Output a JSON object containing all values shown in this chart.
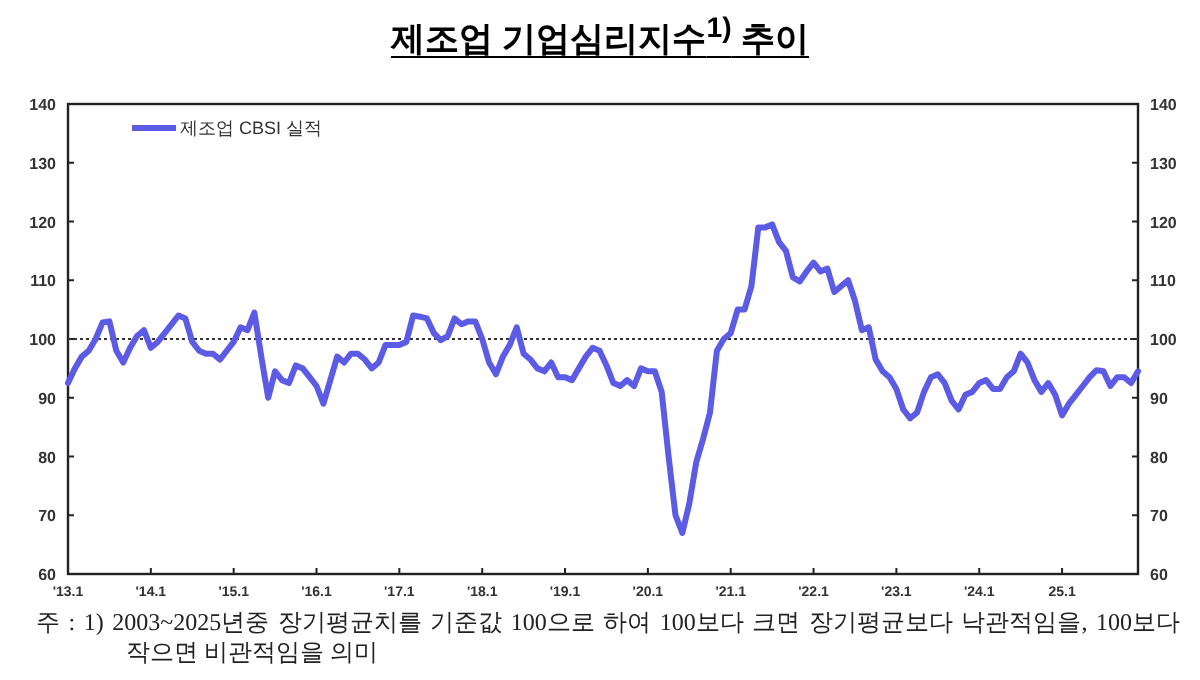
{
  "chart_data": {
    "type": "line",
    "title": "제조업 기업심리지수$^{1)}$ 추이",
    "x": [
      "2013-01",
      "2013-02",
      "2013-03",
      "2013-04",
      "2013-05",
      "2013-06",
      "2013-07",
      "2013-08",
      "2013-09",
      "2013-10",
      "2013-11",
      "2013-12",
      "2014-01",
      "2014-02",
      "2014-03",
      "2014-04",
      "2014-05",
      "2014-06",
      "2014-07",
      "2014-08",
      "2014-09",
      "2014-10",
      "2014-11",
      "2014-12",
      "2015-01",
      "2015-02",
      "2015-03",
      "2015-04",
      "2015-05",
      "2015-06",
      "2015-07",
      "2015-08",
      "2015-09",
      "2015-10",
      "2015-11",
      "2015-12",
      "2016-01",
      "2016-02",
      "2016-03",
      "2016-04",
      "2016-05",
      "2016-06",
      "2016-07",
      "2016-08",
      "2016-09",
      "2016-10",
      "2016-11",
      "2016-12",
      "2017-01",
      "2017-02",
      "2017-03",
      "2017-04",
      "2017-05",
      "2017-06",
      "2017-07",
      "2017-08",
      "2017-09",
      "2017-10",
      "2017-11",
      "2017-12",
      "2018-01",
      "2018-02",
      "2018-03",
      "2018-04",
      "2018-05",
      "2018-06",
      "2018-07",
      "2018-08",
      "2018-09",
      "2018-10",
      "2018-11",
      "2018-12",
      "2019-01",
      "2019-02",
      "2019-03",
      "2019-04",
      "2019-05",
      "2019-06",
      "2019-07",
      "2019-08",
      "2019-09",
      "2019-10",
      "2019-11",
      "2019-12",
      "2020-01",
      "2020-02",
      "2020-03",
      "2020-04",
      "2020-05",
      "2020-06",
      "2020-07",
      "2020-08",
      "2020-09",
      "2020-10",
      "2020-11",
      "2020-12",
      "2021-01",
      "2021-02",
      "2021-03",
      "2021-04",
      "2021-05",
      "2021-06",
      "2021-07",
      "2021-08",
      "2021-09",
      "2021-10",
      "2021-11",
      "2021-12",
      "2022-01",
      "2022-02",
      "2022-03",
      "2022-04",
      "2022-05",
      "2022-06",
      "2022-07",
      "2022-08",
      "2022-09",
      "2022-10",
      "2022-11",
      "2022-12",
      "2023-01",
      "2023-02",
      "2023-03",
      "2023-04",
      "2023-05",
      "2023-06",
      "2023-07",
      "2023-08",
      "2023-09",
      "2023-10",
      "2023-11",
      "2023-12",
      "2024-01",
      "2024-02",
      "2024-03",
      "2024-04",
      "2024-05",
      "2024-06",
      "2024-07",
      "2024-08",
      "2024-09",
      "2024-10",
      "2024-11",
      "2024-12",
      "2025-01",
      "2025-02",
      "2025-03",
      "2025-04",
      "2025-05",
      "2025-06",
      "2025-07",
      "2025-08",
      "2025-09",
      "2025-10",
      "2025-11",
      "2025-12"
    ],
    "series": [
      {
        "name": "제조업 CBSI 실적",
        "color": "#5b5be6",
        "values": [
          92.5,
          95,
          97,
          98,
          100,
          102.8,
          103,
          98,
          96,
          98.5,
          100.5,
          101.5,
          98.5,
          99.5,
          101,
          102.5,
          104,
          103.5,
          99.5,
          98,
          97.5,
          97.5,
          96.5,
          98,
          99.5,
          102,
          101.5,
          104.5,
          97,
          90,
          94.5,
          93,
          92.5,
          95.5,
          95,
          93.5,
          92,
          89,
          93,
          97,
          96,
          97.5,
          97.5,
          96.5,
          95,
          96,
          99,
          99,
          99,
          99.5,
          104,
          103.8,
          103.5,
          101,
          99.8,
          100.5,
          103.5,
          102.5,
          103,
          103,
          100,
          96,
          94,
          97,
          99,
          102,
          97.5,
          96.5,
          95,
          94.5,
          96,
          93.5,
          93.5,
          93,
          95,
          97,
          98.5,
          98,
          95.5,
          92.5,
          92,
          93,
          92,
          95,
          94.5,
          94.5,
          91,
          80,
          70,
          67,
          72,
          79,
          83,
          87.5,
          98,
          100,
          101,
          105,
          105,
          109,
          119,
          119,
          119.5,
          116.5,
          115,
          110.5,
          109.8,
          111.5,
          113,
          111.5,
          112,
          108,
          109,
          110,
          106.5,
          101.5,
          102,
          96.5,
          94.5,
          93.5,
          91.5,
          88,
          86.5,
          87.5,
          91,
          93.5,
          94,
          92.5,
          89.5,
          88,
          90.5,
          91,
          92.5,
          93,
          91.5,
          91.5,
          93.5,
          94.5,
          97.5,
          96,
          93,
          91,
          92.5,
          90.5,
          87,
          89,
          90.5,
          92,
          93.5,
          94.7,
          94.5,
          92,
          93.5,
          93.5,
          92.5,
          94.5
        ]
      }
    ],
    "xlim": [
      "2013-01",
      "2025-12"
    ],
    "xticks": [
      {
        "value": "2013-01",
        "label": "'13.1"
      },
      {
        "value": "2014-01",
        "label": "'14.1"
      },
      {
        "value": "2015-01",
        "label": "'15.1"
      },
      {
        "value": "2016-01",
        "label": "'16.1"
      },
      {
        "value": "2017-01",
        "label": "'17.1"
      },
      {
        "value": "2018-01",
        "label": "'18.1"
      },
      {
        "value": "2019-01",
        "label": "'19.1"
      },
      {
        "value": "2020-01",
        "label": "'20.1"
      },
      {
        "value": "2021-01",
        "label": "'21.1"
      },
      {
        "value": "2022-01",
        "label": "'22.1"
      },
      {
        "value": "2023-01",
        "label": "'23.1"
      },
      {
        "value": "2024-01",
        "label": "'24.1"
      },
      {
        "value": "2025-01",
        "label": "25.1"
      }
    ],
    "ylim": [
      60,
      140
    ],
    "yticks": [
      60,
      70,
      80,
      90,
      100,
      110,
      120,
      130,
      140
    ],
    "y2lim": [
      60,
      140
    ],
    "y2ticks": [
      60,
      70,
      80,
      90,
      100,
      110,
      120,
      130,
      140
    ],
    "ref_lines": [
      {
        "axis": "y",
        "value": 100,
        "color": "#333333",
        "line_style": "dotted"
      }
    ],
    "legend": "top left",
    "annotations": [
      "주 : 1) 2003~2025년중 장기평균치를 기준값 100으로 하여 100보다 크면 장기평균보다 낙관적임을, 100보다 작으면 비관적임을 의미"
    ]
  }
}
